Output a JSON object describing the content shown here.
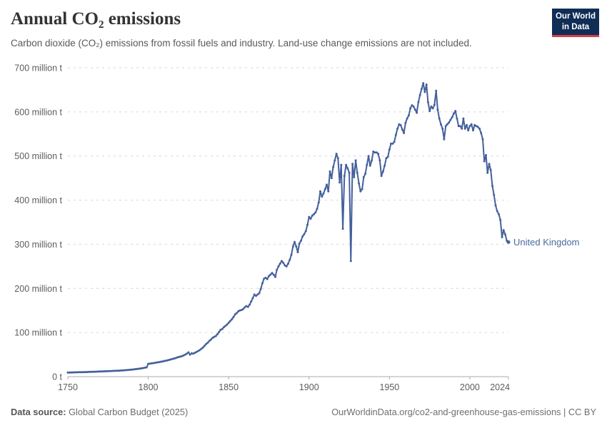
{
  "header": {
    "title": "Annual CO₂ emissions",
    "subtitle": "Carbon dioxide (CO₂) emissions from fossil fuels and industry. Land-use change emissions are not included.",
    "logo": {
      "line1": "Our World",
      "line2": "in Data",
      "bg_color": "#102d56",
      "accent_color": "#d93c48"
    }
  },
  "footer": {
    "source_label": "Data source:",
    "source_value": " Global Carbon Budget (2025)",
    "credit": "OurWorldinData.org/co2-and-greenhouse-gas-emissions | CC BY"
  },
  "chart_data": {
    "type": "line",
    "title": "Annual CO₂ emissions",
    "xlabel": "",
    "ylabel": "",
    "unit": "million t",
    "grid": "horizontal-dashed",
    "legend_position": "end-of-line-label",
    "line_color": "#44609c",
    "label_color": "#4c6a9c",
    "xlim": [
      1750,
      2024
    ],
    "ylim": [
      0,
      700
    ],
    "x_start_year": 1750,
    "x_ticks": [
      1750,
      1800,
      1850,
      1900,
      1950,
      2000,
      2024
    ],
    "y_ticks": [
      {
        "value": 0,
        "label": "0 t"
      },
      {
        "value": 100,
        "label": "100 million t"
      },
      {
        "value": 200,
        "label": "200 million t"
      },
      {
        "value": 300,
        "label": "300 million t"
      },
      {
        "value": 400,
        "label": "400 million t"
      },
      {
        "value": 500,
        "label": "500 million t"
      },
      {
        "value": 600,
        "label": "600 million t"
      },
      {
        "value": 700,
        "label": "700 million t"
      }
    ],
    "series": [
      {
        "name": "United Kingdom",
        "values": [
          9.3,
          9.4,
          9.5,
          9.6,
          9.7,
          9.8,
          9.9,
          10,
          10.1,
          10.2,
          10.3,
          10.4,
          10.5,
          10.7,
          10.8,
          11,
          11.1,
          11.2,
          11.3,
          11.5,
          11.6,
          11.8,
          12,
          12.1,
          12.3,
          12.4,
          12.6,
          12.7,
          12.9,
          13.1,
          13.2,
          13.4,
          13.6,
          13.9,
          14.1,
          14.4,
          14.7,
          15,
          15.3,
          15.7,
          16,
          16.4,
          16.9,
          17.3,
          17.8,
          18.4,
          19,
          19.6,
          20.3,
          21,
          29,
          29.5,
          30,
          30.5,
          31,
          32,
          32.5,
          33,
          34,
          34.5,
          35.5,
          36,
          37,
          38,
          39,
          40,
          41,
          42,
          43.5,
          44.5,
          45.5,
          46.5,
          48,
          50,
          52,
          55,
          50,
          53,
          52,
          54,
          56,
          58,
          60,
          63,
          66,
          70,
          74,
          77,
          81,
          84,
          88,
          90,
          92,
          96,
          101,
          106,
          108,
          112,
          115,
          118,
          122,
          126,
          130,
          135,
          141,
          144,
          148,
          150,
          151,
          153,
          157,
          160,
          158,
          163,
          170,
          178,
          186,
          183,
          186,
          189,
          199,
          212,
          222,
          224,
          221,
          228,
          231,
          235,
          231,
          226,
          242,
          250,
          256,
          262,
          258,
          252,
          250,
          256,
          265,
          276,
          295,
          305,
          295,
          282,
          302,
          308,
          318,
          323,
          330,
          344,
          362,
          358,
          365,
          368,
          372,
          380,
          395,
          420,
          408,
          415,
          425,
          435,
          420,
          465,
          450,
          475,
          490,
          505,
          495,
          440,
          480,
          335,
          455,
          480,
          472,
          462,
          262,
          482,
          452,
          490,
          462,
          438,
          420,
          425,
          452,
          460,
          480,
          500,
          478,
          490,
          510,
          508,
          508,
          505,
          490,
          455,
          465,
          478,
          495,
          498,
          515,
          528,
          528,
          532,
          548,
          562,
          572,
          570,
          560,
          552,
          575,
          585,
          592,
          608,
          615,
          612,
          605,
          598,
          622,
          638,
          652,
          665,
          645,
          662,
          622,
          602,
          612,
          608,
          616,
          648,
          605,
          585,
          572,
          562,
          538,
          568,
          572,
          576,
          582,
          588,
          596,
          602,
          585,
          568,
          568,
          562,
          585,
          562,
          570,
          558,
          568,
          572,
          558,
          570,
          568,
          566,
          562,
          552,
          538,
          488,
          502,
          462,
          482,
          468,
          432,
          412,
          388,
          375,
          368,
          355,
          316,
          332,
          322,
          308,
          305
        ]
      }
    ]
  }
}
